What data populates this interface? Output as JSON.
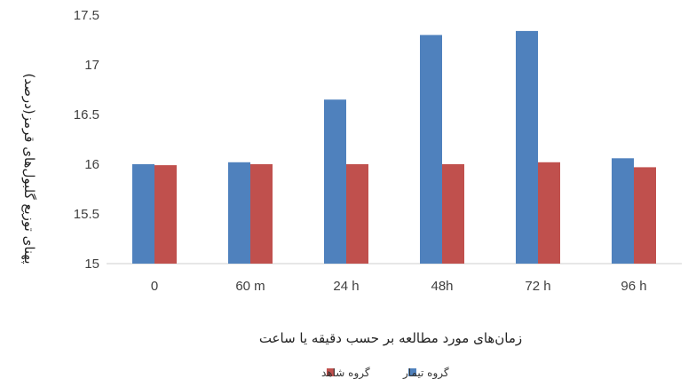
{
  "chart_data": {
    "type": "bar",
    "title": "",
    "xlabel": "زمان‌های مورد مطالعه بر حسب دقیقه یا ساعت",
    "ylabel": "پهنای توزیع گلبول‌های قرمز(درصد)",
    "categories": [
      "0",
      "60 m",
      "24 h",
      "48h",
      "72 h",
      "96 h"
    ],
    "ylim": [
      15,
      17.5
    ],
    "yticks": [
      15,
      15.5,
      16,
      16.5,
      17,
      17.5
    ],
    "ytick_labels": [
      "15",
      "15.5",
      "16",
      "16.5",
      "17",
      "17.5"
    ],
    "grid": false,
    "legend_position": "bottom",
    "series": [
      {
        "name": "گروه تیمار",
        "color": "#4F81BD",
        "values": [
          16.0,
          16.02,
          16.65,
          17.3,
          17.34,
          16.06
        ]
      },
      {
        "name": "گروه شاهد",
        "color": "#C0504D",
        "values": [
          15.99,
          16.0,
          16.0,
          16.0,
          16.02,
          15.97
        ]
      }
    ]
  }
}
